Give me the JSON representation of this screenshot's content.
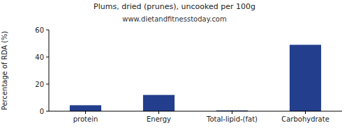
{
  "chart_data": {
    "type": "bar",
    "title": "Plums, dried (prunes), uncooked per 100g",
    "subtitle": "www.dietandfitnesstoday.com",
    "y_label": "Percentage of RDA (%)",
    "categories": [
      "protein",
      "Energy",
      "Total-lipid-(fat)",
      "Carbohydrate"
    ],
    "values": [
      4.4,
      12,
      0.6,
      49
    ],
    "color": "#233e8c",
    "ylim": [
      0,
      60
    ],
    "yticks": [
      0,
      20,
      40,
      60
    ],
    "grid": false
  }
}
